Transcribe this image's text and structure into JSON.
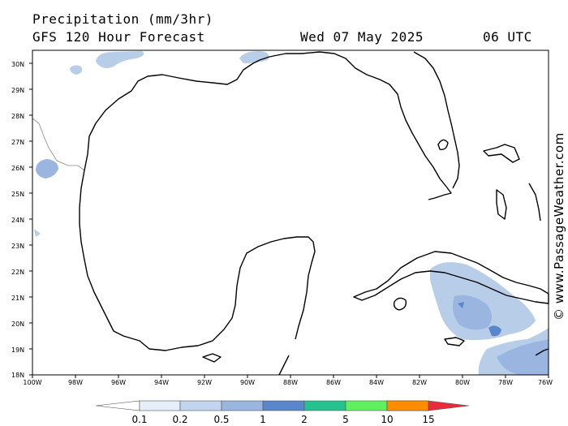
{
  "header": {
    "title": "Precipitation (mm/3hr)",
    "subtitle": "GFS 120 Hour Forecast",
    "date": "Wed 07 May 2025",
    "time": "06 UTC"
  },
  "watermark": "© www.PassageWeather.com",
  "map": {
    "region": "Gulf of Mexico",
    "lat_labels": [
      "30N",
      "29N",
      "28N",
      "27N",
      "26N",
      "25N",
      "24N",
      "23N",
      "22N",
      "21N",
      "20N",
      "19N",
      "18N"
    ],
    "lon_labels": [
      "100W",
      "98W",
      "96W",
      "94W",
      "92W",
      "90W",
      "88W",
      "86W",
      "84W",
      "82W",
      "80W",
      "78W",
      "76W"
    ],
    "lat_range": [
      18,
      30.4
    ],
    "lon_range": [
      -100,
      -76
    ],
    "colors": {
      "light": "#b8cde8",
      "medium": "#9ab5e0",
      "dark": "#5a86cc",
      "coastline": "#000000"
    }
  },
  "legend": {
    "labels": [
      "0.1",
      "0.2",
      "0.5",
      "1",
      "2",
      "5",
      "10",
      "15"
    ],
    "colors": [
      "#ffffff",
      "#e6eefa",
      "#c2d4ee",
      "#9ab5e0",
      "#5a86cc",
      "#25c28f",
      "#5ff05f",
      "#ffd700",
      "#ff8c00",
      "#e82c3c"
    ]
  }
}
